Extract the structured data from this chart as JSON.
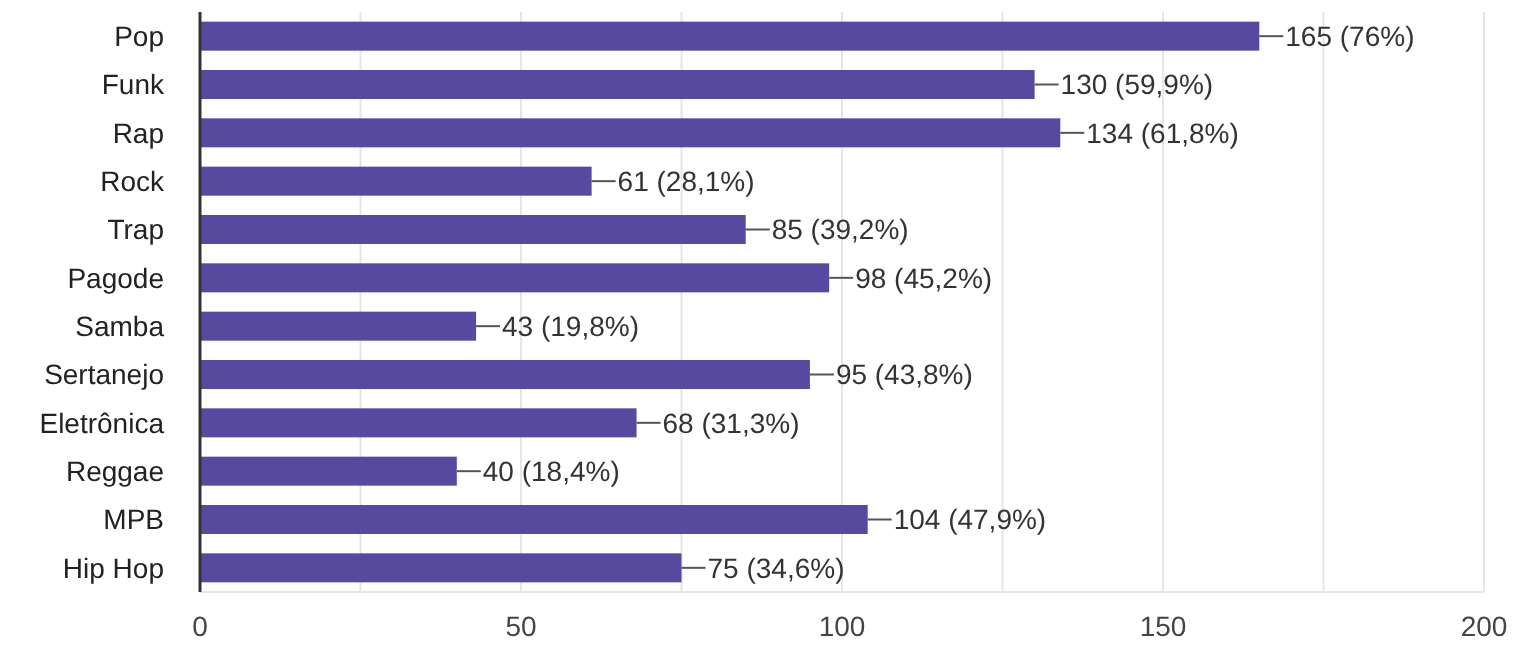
{
  "chart_data": {
    "type": "bar",
    "orientation": "horizontal",
    "categories": [
      "Pop",
      "Funk",
      "Rap",
      "Rock",
      "Trap",
      "Pagode",
      "Samba",
      "Sertanejo",
      "Eletrônica",
      "Reggae",
      "MPB",
      "Hip Hop"
    ],
    "values": [
      165,
      130,
      134,
      61,
      85,
      98,
      43,
      95,
      68,
      40,
      104,
      75
    ],
    "value_labels": [
      "165 (76%)",
      "130 (59,9%)",
      "134 (61,8%)",
      "61 (28,1%)",
      "85 (39,2%)",
      "98 (45,2%)",
      "43 (19,8%)",
      "95 (43,8%)",
      "68 (31,3%)",
      "40 (18,4%)",
      "104 (47,9%)",
      "75 (34,6%)"
    ],
    "color": "#5748a0",
    "xlim": [
      0,
      200
    ],
    "xticks": [
      0,
      {
        "value": 25,
        "label": null
      },
      50,
      {
        "value": 75,
        "label": null
      },
      100,
      {
        "value": 125,
        "label": null
      },
      150,
      {
        "value": 175,
        "label": null
      },
      200
    ],
    "grid": "x"
  }
}
